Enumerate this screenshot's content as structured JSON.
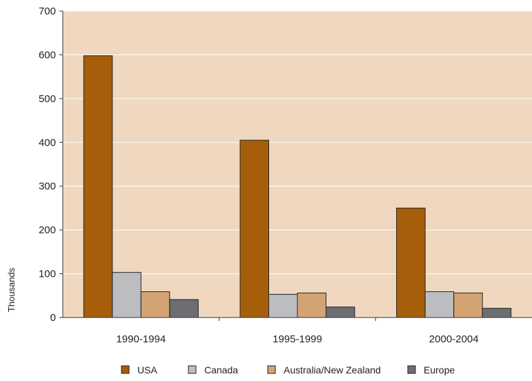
{
  "chart_data": {
    "type": "bar",
    "title": "",
    "xlabel": "",
    "ylabel": "Thousands",
    "ylim": [
      0,
      700
    ],
    "yticks": [
      0,
      100,
      200,
      300,
      400,
      500,
      600,
      700
    ],
    "categories": [
      "1990-1994",
      "1995-1999",
      "2000-2004"
    ],
    "series": [
      {
        "name": "USA",
        "color": "#a65e0a",
        "values": [
          598,
          405,
          250
        ]
      },
      {
        "name": "Canada",
        "color": "#bbbdc0",
        "values": [
          103,
          53,
          59
        ]
      },
      {
        "name": "Australia/New Zealand",
        "color": "#d4a373",
        "values": [
          59,
          56,
          56
        ]
      },
      {
        "name": "Europe",
        "color": "#6d6e71",
        "values": [
          41,
          24,
          21
        ]
      }
    ],
    "grid": true,
    "legend_position": "bottom",
    "plot_background": "#efd8bf",
    "gridline_color": "#ffffff"
  }
}
